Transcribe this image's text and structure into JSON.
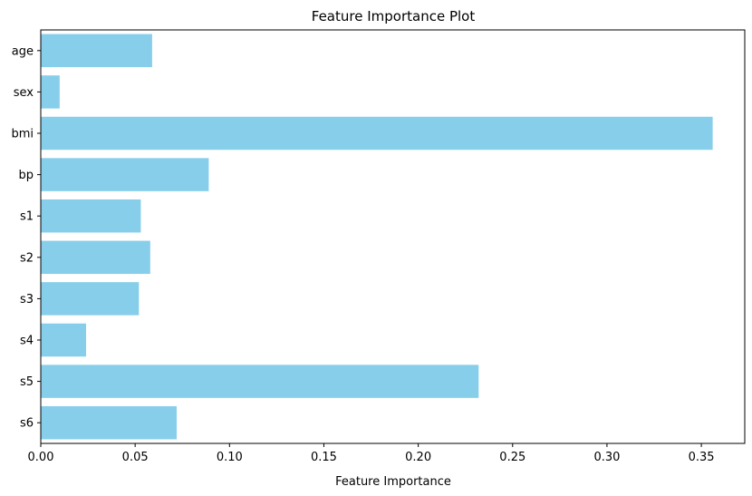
{
  "chart_data": {
    "type": "bar",
    "orientation": "horizontal",
    "title": "Feature Importance Plot",
    "xlabel": "Feature Importance",
    "ylabel": "",
    "categories": [
      "age",
      "sex",
      "bmi",
      "bp",
      "s1",
      "s2",
      "s3",
      "s4",
      "s5",
      "s6"
    ],
    "values": [
      0.059,
      0.01,
      0.356,
      0.089,
      0.053,
      0.058,
      0.052,
      0.024,
      0.232,
      0.072
    ],
    "xlim": [
      0,
      0.373
    ],
    "xticks": [
      "0.00",
      "0.05",
      "0.10",
      "0.15",
      "0.20",
      "0.25",
      "0.30",
      "0.35"
    ],
    "bar_color": "#87CEEB",
    "grid": false,
    "legend": "none"
  }
}
